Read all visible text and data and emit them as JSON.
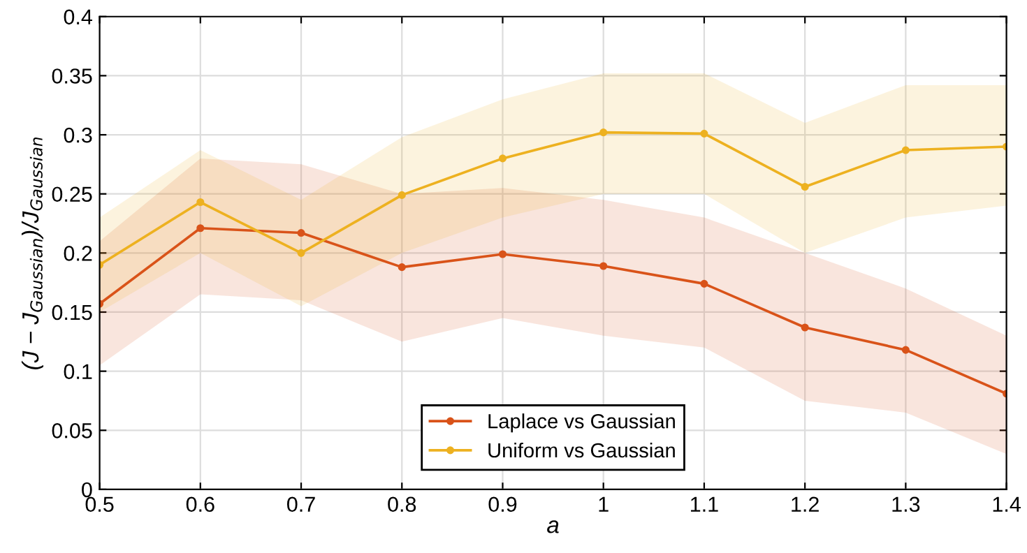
{
  "chart_data": {
    "type": "line",
    "xlabel": "a",
    "ylabel": "(J − J$_{Gaussian}$)/J$_{Gaussian}$",
    "x": [
      0.5,
      0.6,
      0.7,
      0.8,
      0.9,
      1.0,
      1.1,
      1.2,
      1.3,
      1.4
    ],
    "series": [
      {
        "name": "Laplace vs Gaussian",
        "color": "#d95319",
        "values": [
          0.157,
          0.221,
          0.217,
          0.188,
          0.199,
          0.189,
          0.174,
          0.137,
          0.118,
          0.081
        ],
        "lower": [
          0.105,
          0.165,
          0.16,
          0.125,
          0.145,
          0.13,
          0.12,
          0.075,
          0.065,
          0.03
        ],
        "upper": [
          0.21,
          0.28,
          0.275,
          0.25,
          0.255,
          0.245,
          0.23,
          0.2,
          0.17,
          0.13
        ]
      },
      {
        "name": "Uniform vs Gaussian",
        "color": "#edb120",
        "values": [
          0.19,
          0.243,
          0.2,
          0.249,
          0.28,
          0.302,
          0.301,
          0.256,
          0.287,
          0.29
        ],
        "lower": [
          0.15,
          0.2,
          0.155,
          0.2,
          0.23,
          0.25,
          0.25,
          0.2,
          0.23,
          0.24
        ],
        "upper": [
          0.23,
          0.287,
          0.245,
          0.298,
          0.33,
          0.352,
          0.352,
          0.31,
          0.342,
          0.342
        ]
      }
    ],
    "xlim": [
      0.5,
      1.4
    ],
    "xticks": [
      0.5,
      0.6,
      0.7,
      0.8,
      0.9,
      1,
      1.1,
      1.2,
      1.3,
      1.4
    ],
    "ylim": [
      0,
      0.4
    ],
    "yticks": [
      0,
      0.05,
      0.1,
      0.15,
      0.2,
      0.25,
      0.3,
      0.35,
      0.4
    ],
    "grid": true,
    "legend": "bottom",
    "marker": "circle",
    "line_style": "solid"
  }
}
